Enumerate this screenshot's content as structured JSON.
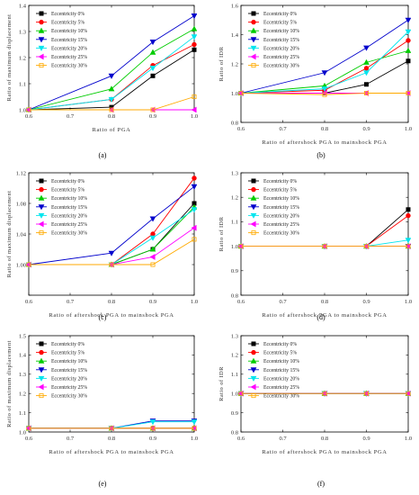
{
  "panel_labels": [
    "(a)",
    "(b)",
    "(c)",
    "(d)",
    "(e)",
    "(f)"
  ],
  "series_colors": [
    "#000000",
    "#ff0000",
    "#00cc00",
    "#0000cc",
    "#00e5ee",
    "#ff00ff",
    "#ffaa00"
  ],
  "chart_data": [
    {
      "type": "line",
      "label": "(a)",
      "xlabel": "Ratio of PGA",
      "ylabel": "Ratio of maximum displacement",
      "x": [
        0.6,
        0.8,
        0.9,
        1.0
      ],
      "xlim": [
        0.6,
        1.0
      ],
      "xticks": [
        "0.6",
        "0.7",
        "0.8",
        "0.9",
        "1.0"
      ],
      "ylim": [
        1.0,
        1.4
      ],
      "yticks": [
        "1.0",
        "1.1",
        "1.2",
        "1.3",
        "1.4"
      ],
      "legend": "top-left",
      "series": [
        {
          "name": "Eccentricity 0%",
          "values": [
            1.0,
            1.01,
            1.13,
            1.23
          ]
        },
        {
          "name": "Eccentricity 5%",
          "values": [
            1.0,
            1.04,
            1.17,
            1.25
          ]
        },
        {
          "name": "Eccentricity 10%",
          "values": [
            1.0,
            1.08,
            1.22,
            1.31
          ]
        },
        {
          "name": "Eccentricity 15%",
          "values": [
            1.0,
            1.13,
            1.26,
            1.36
          ]
        },
        {
          "name": "Eccentricity 20%",
          "values": [
            1.0,
            1.04,
            1.16,
            1.28
          ]
        },
        {
          "name": "Eccentricity 25%",
          "values": [
            1.0,
            1.0,
            1.0,
            1.0
          ]
        },
        {
          "name": "Eccentricity 30%",
          "values": [
            1.0,
            1.0,
            1.0,
            1.05
          ]
        }
      ]
    },
    {
      "type": "line",
      "label": "(b)",
      "xlabel": "Ratio of aftershock PGA to mainshock PGA",
      "ylabel": "Ratio of IDR",
      "x": [
        0.6,
        0.8,
        0.9,
        1.0
      ],
      "xlim": [
        0.6,
        1.0
      ],
      "xticks": [
        "0.6",
        "0.7",
        "0.8",
        "0.9",
        "1.0"
      ],
      "ylim": [
        0.8,
        1.6
      ],
      "yticks": [
        "0.8",
        "1.0",
        "1.2",
        "1.4",
        "1.6"
      ],
      "legend": "top-left",
      "series": [
        {
          "name": "Eccentricity 0%",
          "values": [
            1.0,
            1.0,
            1.06,
            1.22
          ]
        },
        {
          "name": "Eccentricity 5%",
          "values": [
            1.0,
            1.02,
            1.17,
            1.36
          ]
        },
        {
          "name": "Eccentricity 10%",
          "values": [
            1.0,
            1.05,
            1.21,
            1.29
          ]
        },
        {
          "name": "Eccentricity 15%",
          "values": [
            1.0,
            1.14,
            1.31,
            1.5
          ]
        },
        {
          "name": "Eccentricity 20%",
          "values": [
            1.0,
            1.03,
            1.14,
            1.42
          ]
        },
        {
          "name": "Eccentricity 25%",
          "values": [
            1.0,
            1.0,
            1.0,
            1.0
          ]
        },
        {
          "name": "Eccentricity 30%",
          "values": [
            1.0,
            0.99,
            1.0,
            1.0
          ]
        }
      ]
    },
    {
      "type": "line",
      "label": "(c)",
      "xlabel": "Ratio of aftershock PGA to mainshock PGA",
      "ylabel": "Ratio of maximum displacement",
      "x": [
        0.6,
        0.8,
        0.9,
        1.0
      ],
      "xlim": [
        0.6,
        1.0
      ],
      "xticks": [
        "0.6",
        "0.7",
        "0.8",
        "0.9",
        "1.0"
      ],
      "ylim": [
        0.96,
        1.12
      ],
      "yticks": [
        "",
        "1.00",
        "1.04",
        "1.08",
        "1.12"
      ],
      "legend": "top-left",
      "series": [
        {
          "name": "Eccentricity 0%",
          "values": [
            1.0,
            1.0,
            1.02,
            1.08
          ]
        },
        {
          "name": "Eccentricity 5%",
          "values": [
            1.0,
            1.0,
            1.04,
            1.113
          ]
        },
        {
          "name": "Eccentricity 10%",
          "values": [
            1.0,
            1.0,
            1.02,
            1.075
          ]
        },
        {
          "name": "Eccentricity 15%",
          "values": [
            1.0,
            1.015,
            1.06,
            1.102
          ]
        },
        {
          "name": "Eccentricity 20%",
          "values": [
            1.0,
            1.0,
            1.035,
            1.072
          ]
        },
        {
          "name": "Eccentricity 25%",
          "values": [
            1.0,
            1.0,
            1.01,
            1.048
          ]
        },
        {
          "name": "Eccentricity 30%",
          "values": [
            1.0,
            1.0,
            1.0,
            1.033
          ]
        }
      ]
    },
    {
      "type": "line",
      "label": "(d)",
      "xlabel": "Ratio of aftershock PGA to mainshock PGA",
      "ylabel": "Ratio of IDR",
      "x": [
        0.6,
        0.8,
        0.9,
        1.0
      ],
      "xlim": [
        0.6,
        1.0
      ],
      "xticks": [
        "0.6",
        "0.7",
        "0.8",
        "0.9",
        "1.0"
      ],
      "ylim": [
        0.8,
        1.3
      ],
      "yticks": [
        "0.8",
        "0.9",
        "1.0",
        "1.1",
        "1.2",
        "1.3"
      ],
      "legend": "top-left",
      "series": [
        {
          "name": "Eccentricity 0%",
          "values": [
            1.0,
            1.0,
            1.0,
            1.15
          ]
        },
        {
          "name": "Eccentricity 5%",
          "values": [
            1.0,
            1.0,
            1.0,
            1.125
          ]
        },
        {
          "name": "Eccentricity 10%",
          "values": [
            1.0,
            1.0,
            1.0,
            1.0
          ]
        },
        {
          "name": "Eccentricity 15%",
          "values": [
            1.0,
            1.0,
            1.0,
            1.0
          ]
        },
        {
          "name": "Eccentricity 20%",
          "values": [
            1.0,
            1.0,
            1.0,
            1.025
          ]
        },
        {
          "name": "Eccentricity 25%",
          "values": [
            1.0,
            1.0,
            1.0,
            1.0
          ]
        },
        {
          "name": "Eccentricity 30%",
          "values": [
            1.0,
            1.0,
            1.0,
            1.0
          ]
        }
      ]
    },
    {
      "type": "line",
      "label": "(e)",
      "xlabel": "Ratio of aftershock PGA to mainshock PGA",
      "ylabel": "Ratio of maximum displacement",
      "x": [
        0.6,
        0.8,
        0.9,
        1.0
      ],
      "xlim": [
        0.6,
        1.0
      ],
      "xticks": [
        "0.6",
        "0.7",
        "0.8",
        "0.9",
        "1.0"
      ],
      "ylim": [
        0.98,
        1.5
      ],
      "yticks": [
        "1.0",
        "1.1",
        "1.2",
        "1.3",
        "1.4",
        "1.5"
      ],
      "legend": "top-left",
      "series": [
        {
          "name": "Eccentricity 0%",
          "values": [
            1.0,
            1.0,
            1.0,
            1.0
          ]
        },
        {
          "name": "Eccentricity 5%",
          "values": [
            1.0,
            1.0,
            1.0,
            1.0
          ]
        },
        {
          "name": "Eccentricity 10%",
          "values": [
            1.0,
            1.0,
            1.0,
            1.0
          ]
        },
        {
          "name": "Eccentricity 15%",
          "values": [
            1.0,
            1.0,
            1.04,
            1.04
          ]
        },
        {
          "name": "Eccentricity 20%",
          "values": [
            1.0,
            1.0,
            1.035,
            1.035
          ]
        },
        {
          "name": "Eccentricity 25%",
          "values": [
            1.0,
            1.0,
            1.0,
            1.0
          ]
        },
        {
          "name": "Eccentricity 30%",
          "values": [
            1.0,
            1.0,
            1.0,
            1.0
          ]
        }
      ]
    },
    {
      "type": "line",
      "label": "(f)",
      "xlabel": "Ratio of aftershock PGA to mainshock PGA",
      "ylabel": "Ratio of IDR",
      "x": [
        0.6,
        0.8,
        0.9,
        1.0
      ],
      "xlim": [
        0.6,
        1.0
      ],
      "xticks": [
        "0.6",
        "0.7",
        "0.8",
        "0.9",
        "1.0"
      ],
      "ylim": [
        0.8,
        1.3
      ],
      "yticks": [
        "0.8",
        "0.9",
        "1.0",
        "1.1",
        "1.2",
        "1.3"
      ],
      "legend": "top-left",
      "series": [
        {
          "name": "Eccentricity 0%",
          "values": [
            1.0,
            1.0,
            1.0,
            1.0
          ]
        },
        {
          "name": "Eccentricity 5%",
          "values": [
            1.0,
            1.0,
            1.0,
            1.0
          ]
        },
        {
          "name": "Eccentricity 10%",
          "values": [
            1.0,
            1.0,
            1.0,
            1.0
          ]
        },
        {
          "name": "Eccentricity 15%",
          "values": [
            1.0,
            1.0,
            1.0,
            1.0
          ]
        },
        {
          "name": "Eccentricity 20%",
          "values": [
            1.0,
            1.0,
            1.0,
            1.0
          ]
        },
        {
          "name": "Eccentricity 25%",
          "values": [
            1.0,
            1.0,
            1.0,
            1.0
          ]
        },
        {
          "name": "Eccentricity 30%",
          "values": [
            1.0,
            1.0,
            1.0,
            1.0
          ]
        }
      ]
    }
  ]
}
